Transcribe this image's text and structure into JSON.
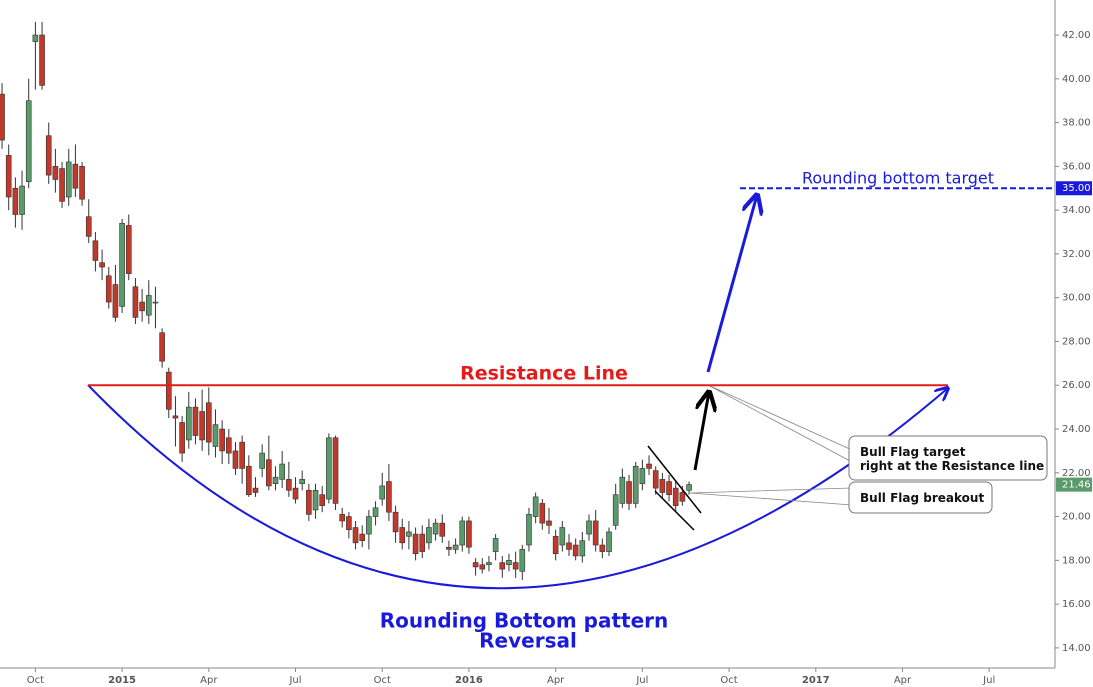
{
  "chart_data": {
    "type": "candlestick",
    "categories": [
      null,
      null,
      null,
      null,
      null,
      "Oct",
      null,
      null,
      null,
      null,
      null,
      null,
      null,
      null,
      null,
      null,
      null,
      null,
      "2015",
      null,
      null,
      null,
      null,
      null,
      null,
      null,
      null,
      null,
      null,
      null,
      null,
      "Apr",
      null,
      null,
      null,
      null,
      null,
      null,
      null,
      null,
      null,
      null,
      null,
      null,
      "Jul",
      null,
      null,
      null,
      null,
      null,
      null,
      null,
      null,
      null,
      null,
      null,
      null,
      "Oct",
      null,
      null,
      null,
      null,
      null,
      null,
      null,
      null,
      null,
      null,
      null,
      null,
      "2016",
      null,
      null,
      null,
      null,
      null,
      null,
      null,
      null,
      null,
      null,
      null,
      null,
      "Apr",
      null,
      null,
      null,
      null,
      null,
      null,
      null,
      null,
      null,
      null,
      null,
      null,
      "Jul",
      null,
      null,
      null,
      null,
      null,
      null,
      null,
      null,
      null,
      null,
      null,
      null,
      "Oct",
      null,
      null,
      null,
      null,
      null,
      null,
      null,
      null,
      null,
      null,
      null,
      null,
      "2017",
      null,
      null,
      null,
      null,
      null,
      null,
      null,
      null,
      null,
      null,
      null,
      null,
      "Apr",
      null,
      null,
      null,
      null,
      null,
      null,
      null,
      null,
      null,
      null,
      null,
      null,
      "Jul",
      null,
      null,
      null,
      null,
      null,
      null,
      null,
      null
    ],
    "open": [
      39.3,
      36.5,
      35,
      33.8,
      35.3,
      41.7,
      42,
      37.4,
      36,
      35.9,
      34.6,
      36.1,
      36,
      33.7,
      32.6,
      31.6,
      31,
      30.6,
      29.6,
      33.3,
      30.5,
      29.8,
      29.2,
      29.8,
      28.4,
      26.6,
      24.6,
      24.3,
      23.5,
      25,
      24.8,
      25.2,
      23.2,
      24,
      23.6,
      23,
      23.4,
      22.3,
      21.3,
      22.2,
      22.6,
      21.5,
      21.7,
      21.7,
      21.3,
      21.5,
      21.2,
      20.3,
      21,
      20.8,
      23.6,
      20.1,
      20,
      19.5,
      19.2,
      19.2,
      20,
      20.8,
      21.6,
      20.2,
      19.5,
      19.1,
      19.2,
      19.2,
      18.8,
      19.2,
      19.7,
      18.6,
      18.5,
      18.7,
      19.8,
      17.9,
      17.8,
      17.8,
      18.4,
      17.9,
      17.8,
      17.9,
      17.5,
      18.7,
      20,
      20.6,
      19.8,
      19.1,
      18.7,
      18.8,
      18.7,
      18.2,
      19.2,
      19.8,
      18.7,
      18.4,
      19.6,
      20.6,
      21.6,
      20.6,
      21.5,
      22.4,
      22.1,
      21.7,
      21.6,
      21.3,
      21.1,
      21.2,
      null,
      null,
      null,
      null,
      null,
      null,
      null,
      null,
      null,
      null,
      null,
      null,
      null,
      null,
      null,
      null,
      null,
      null,
      null,
      null,
      null,
      null,
      null,
      null,
      null,
      null,
      null,
      null,
      null,
      null,
      null,
      null,
      null,
      null,
      null,
      null,
      null,
      null,
      null,
      null,
      null,
      null,
      null,
      null,
      null,
      null,
      null,
      null,
      null,
      null,
      null,
      null,
      null
    ],
    "high": [
      39.8,
      37,
      35.5,
      35.8,
      40,
      42.6,
      42.6,
      38,
      36.8,
      36.2,
      36.8,
      37,
      36.2,
      34.5,
      33,
      32.2,
      31.4,
      31.5,
      33.6,
      33.8,
      30.9,
      30.4,
      30.8,
      30.5,
      28.6,
      26.8,
      25.5,
      24.6,
      25.7,
      25.4,
      25.8,
      25.9,
      24.9,
      24.4,
      24,
      23.4,
      23.7,
      22.8,
      21.8,
      23.3,
      23.7,
      22.3,
      23,
      22.5,
      21.8,
      22.1,
      21.5,
      21.5,
      21.4,
      23.8,
      23.7,
      20.4,
      20.2,
      19.8,
      19.6,
      20.3,
      20.7,
      22,
      22.4,
      20.5,
      19.9,
      19.8,
      19.5,
      19.6,
      19.9,
      19.9,
      20.1,
      18.9,
      19,
      20,
      20,
      18.1,
      18.1,
      18.2,
      19.2,
      18.2,
      18.3,
      18.4,
      18.7,
      20.4,
      21.1,
      20.8,
      20.4,
      19.4,
      19.8,
      19.2,
      19,
      19.3,
      20.1,
      20.3,
      19,
      19.5,
      21.5,
      22.2,
      21.9,
      22.5,
      22.6,
      22.8,
      22.3,
      22,
      21.9,
      21.6,
      21.4,
      21.6,
      null,
      null,
      null,
      null,
      null,
      null,
      null,
      null,
      null,
      null,
      null,
      null,
      null,
      null,
      null,
      null,
      null,
      null,
      null,
      null,
      null,
      null,
      null,
      null,
      null,
      null,
      null,
      null,
      null,
      null,
      null,
      null,
      null,
      null,
      null,
      null,
      null,
      null,
      null,
      null,
      null,
      null,
      null,
      null,
      null,
      null,
      null,
      null,
      null,
      null,
      null,
      null,
      null
    ],
    "low": [
      36.8,
      34,
      33.2,
      33.1,
      35,
      39.5,
      39.5,
      35.2,
      34.8,
      34.1,
      34.2,
      34.6,
      34.2,
      32.5,
      31.2,
      30.8,
      29.5,
      28.9,
      29.3,
      30.8,
      28.8,
      28.9,
      28.8,
      28.6,
      26.8,
      24.5,
      23.2,
      22.5,
      23.1,
      23.3,
      23,
      22.8,
      22.7,
      22.4,
      22.4,
      21.9,
      21.5,
      20.9,
      20.9,
      21.8,
      21.2,
      21.2,
      21.3,
      20.9,
      20.6,
      21.2,
      19.8,
      19.9,
      20.2,
      20.6,
      20.3,
      19.5,
      19,
      18.5,
      18.6,
      18.5,
      19.6,
      20.5,
      19.8,
      18.8,
      18.5,
      18.5,
      18,
      18.1,
      18.5,
      18.9,
      18.8,
      18.2,
      18.3,
      18.4,
      18.3,
      17.3,
      17.4,
      17.5,
      18,
      17.2,
      17.5,
      17.2,
      17.1,
      18.4,
      19.7,
      19.4,
      19.2,
      18,
      18.4,
      18.2,
      18,
      17.9,
      18.9,
      18.4,
      18.1,
      18.2,
      19.4,
      20.4,
      20.3,
      20.4,
      21.2,
      21.9,
      21,
      20.8,
      20.7,
      20.2,
      20.5,
      21,
      null,
      null,
      null,
      null,
      null,
      null,
      null,
      null,
      null,
      null,
      null,
      null,
      null,
      null,
      null,
      null,
      null,
      null,
      null,
      null,
      null,
      null,
      null,
      null,
      null,
      null,
      null,
      null,
      null,
      null,
      null,
      null,
      null,
      null,
      null,
      null,
      null,
      null,
      null,
      null,
      null,
      null,
      null,
      null,
      null,
      null,
      null,
      null,
      null,
      null,
      null,
      null,
      null
    ],
    "close": [
      37.2,
      34.6,
      33.8,
      35.1,
      39,
      42,
      39.7,
      35.6,
      35.4,
      34.4,
      36.2,
      35,
      34.5,
      32.8,
      31.7,
      31.4,
      29.8,
      29.1,
      33.4,
      31.1,
      29.1,
      29.4,
      30.1,
      29.8,
      27.1,
      24.9,
      24.5,
      22.9,
      25,
      23.7,
      23.5,
      23.4,
      24.2,
      23,
      22.9,
      22.2,
      22.2,
      21,
      21.1,
      22.9,
      21.4,
      21.8,
      22.4,
      21.2,
      20.8,
      21.7,
      20.1,
      21.2,
      20.5,
      23.6,
      20.6,
      19.8,
      19.4,
      18.8,
      18.9,
      20,
      20.4,
      21.4,
      20.2,
      19.3,
      18.8,
      19.3,
      18.3,
      18.4,
      19.5,
      19.7,
      19.1,
      18.5,
      18.7,
      19.8,
      18.6,
      17.7,
      17.6,
      17.9,
      19,
      17.6,
      18,
      17.6,
      18.5,
      20.1,
      20.9,
      19.7,
      19.6,
      18.3,
      19.5,
      18.5,
      18.2,
      18.9,
      19.8,
      18.7,
      18.4,
      19.3,
      21,
      21.8,
      20.6,
      22.3,
      22.2,
      22.2,
      21.3,
      21.1,
      21,
      20.5,
      20.7,
      21.46,
      null,
      null,
      null,
      null,
      null,
      null,
      null,
      null,
      null,
      null,
      null,
      null,
      null,
      null,
      null,
      null,
      null,
      null,
      null,
      null,
      null,
      null,
      null,
      null,
      null,
      null,
      null,
      null,
      null,
      null,
      null,
      null,
      null,
      null,
      null,
      null,
      null,
      null,
      null,
      null,
      null,
      null,
      null,
      null,
      null,
      null,
      null,
      null,
      null,
      null,
      null,
      null,
      null
    ],
    "up_color": "#5b9a6b",
    "down_color": "#c0392b",
    "ylim": [
      13.1,
      43.6
    ],
    "yticks": [
      {
        "value": 14,
        "label": "14.00"
      },
      {
        "value": 16,
        "label": "16.00"
      },
      {
        "value": 18,
        "label": "18.00"
      },
      {
        "value": 20,
        "label": "20.00"
      },
      {
        "value": 22,
        "label": "22.00"
      },
      {
        "value": 24,
        "label": "24.00"
      },
      {
        "value": 26,
        "label": "26.00"
      },
      {
        "value": 28,
        "label": "28.00"
      },
      {
        "value": 30,
        "label": "30.00"
      },
      {
        "value": 32,
        "label": "32.00"
      },
      {
        "value": 34,
        "label": "34.00"
      },
      {
        "value": 36,
        "label": "36.00"
      },
      {
        "value": 38,
        "label": "38.00"
      },
      {
        "value": 40,
        "label": "40.00"
      },
      {
        "value": 42,
        "label": "42.00"
      }
    ],
    "last_price": 21.46,
    "resistance": {
      "value": 26,
      "label": "Resistance Line",
      "color": "#e31b1b"
    },
    "target": {
      "value": 35,
      "label": "35.00",
      "text": "Rounding bottom target",
      "color": "#1a1adb"
    },
    "callouts": [
      [
        "Bull Flag target",
        "right at the Resistance line"
      ],
      [
        "Bull Flag breakout"
      ]
    ],
    "pattern_label": [
      "Rounding Bottom pattern",
      "Reversal"
    ]
  }
}
